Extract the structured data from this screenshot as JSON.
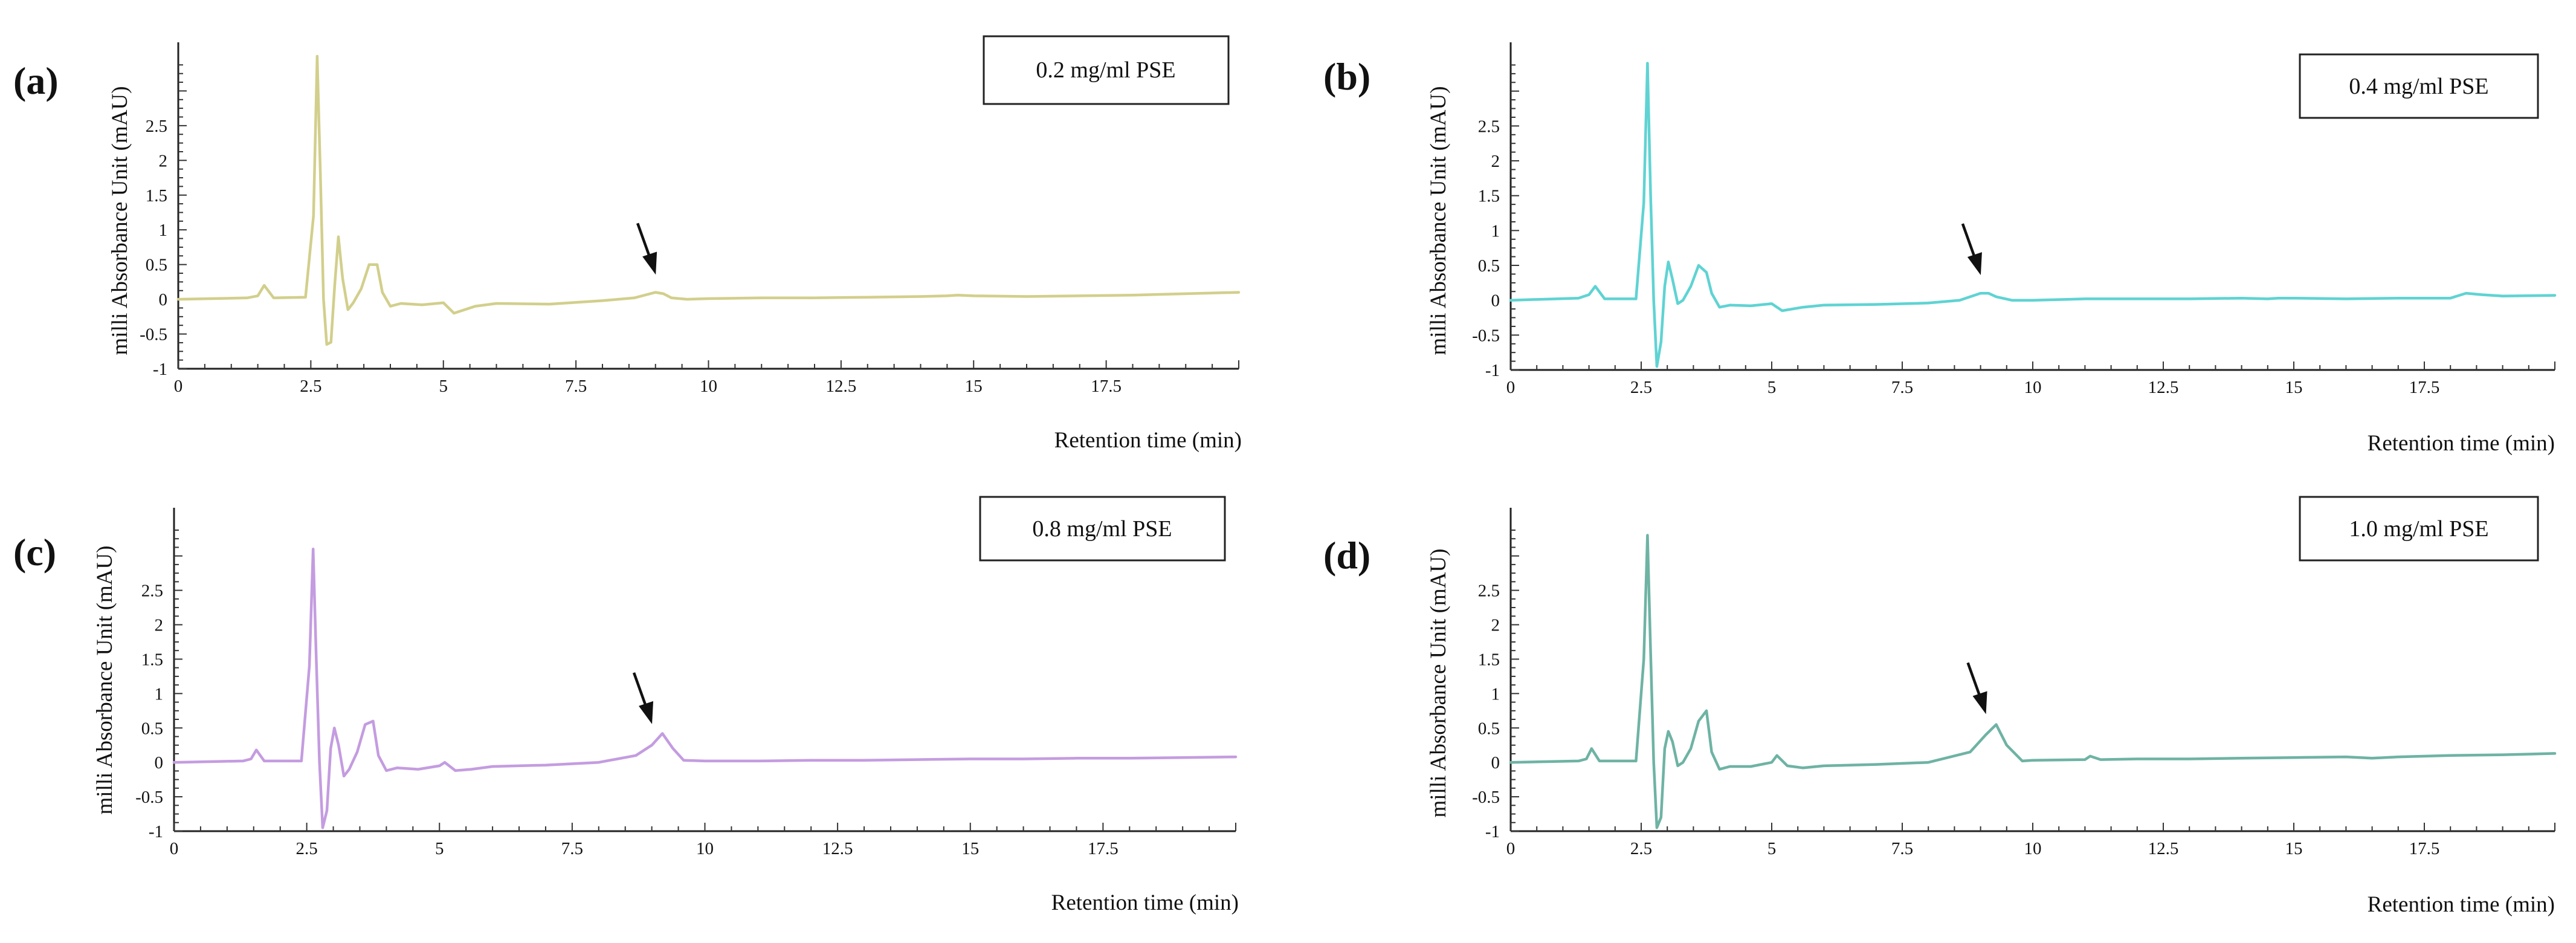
{
  "chart_data": [
    {
      "type": "line",
      "panel": "(a)",
      "legend": "0.2 mg/ml PSE",
      "color": "#d2cf8c",
      "xlabel": "Retention time (min)",
      "ylabel": "milli Absorbance Unit (mAU)",
      "xlim": [
        0,
        20
      ],
      "ylim": [
        -1,
        3.5
      ],
      "xticks": [
        "0",
        "2.5",
        "5",
        "7.5",
        "10",
        "12.5",
        "15",
        "17.5"
      ],
      "yticks": [
        "-1",
        "-0.5",
        "0",
        "0.5",
        "1",
        "1.5",
        "2",
        "2.5"
      ],
      "arrow_at": 9.05,
      "series": [
        {
          "name": "0.2 mg/ml PSE",
          "x": [
            0,
            1.3,
            1.5,
            1.62,
            1.8,
            2.4,
            2.55,
            2.62,
            2.68,
            2.74,
            2.8,
            2.88,
            2.95,
            3.02,
            3.1,
            3.2,
            3.3,
            3.45,
            3.6,
            3.75,
            3.85,
            4.0,
            4.2,
            4.6,
            5.0,
            5.2,
            5.6,
            6.0,
            7.0,
            8.0,
            8.6,
            9.0,
            9.15,
            9.3,
            9.6,
            10.0,
            11.0,
            12.0,
            13.0,
            14.0,
            14.5,
            14.7,
            15.0,
            16.0,
            17.0,
            18.0,
            19.0,
            20.0
          ],
          "y": [
            0,
            0.02,
            0.05,
            0.2,
            0.02,
            0.03,
            1.2,
            3.5,
            1.8,
            0,
            -0.65,
            -0.62,
            0.2,
            0.9,
            0.3,
            -0.15,
            -0.05,
            0.15,
            0.5,
            0.5,
            0.1,
            -0.1,
            -0.06,
            -0.08,
            -0.05,
            -0.2,
            -0.1,
            -0.06,
            -0.07,
            -0.02,
            0.02,
            0.1,
            0.08,
            0.02,
            0,
            0.01,
            0.02,
            0.02,
            0.03,
            0.04,
            0.05,
            0.06,
            0.05,
            0.04,
            0.05,
            0.06,
            0.08,
            0.1
          ]
        }
      ]
    },
    {
      "type": "line",
      "panel": "(b)",
      "legend": "0.4 mg/ml PSE",
      "color": "#5fd3d3",
      "xlabel": "Retention time (min)",
      "ylabel": "milli Absorbance Unit (mAU)",
      "xlim": [
        0,
        20
      ],
      "ylim": [
        -1,
        3.5
      ],
      "xticks": [
        "0",
        "2.5",
        "5",
        "7.5",
        "10",
        "12.5",
        "15",
        "17.5"
      ],
      "yticks": [
        "-1",
        "-0.5",
        "0",
        "0.5",
        "1",
        "1.5",
        "2",
        "2.5"
      ],
      "arrow_at": 9.05,
      "series": [
        {
          "name": "0.4 mg/ml PSE",
          "x": [
            0,
            1.3,
            1.5,
            1.62,
            1.8,
            2.4,
            2.55,
            2.62,
            2.68,
            2.74,
            2.8,
            2.88,
            2.95,
            3.02,
            3.1,
            3.2,
            3.3,
            3.45,
            3.6,
            3.75,
            3.85,
            4.0,
            4.2,
            4.6,
            5.0,
            5.2,
            5.6,
            6.0,
            7.0,
            8.0,
            8.6,
            9.0,
            9.15,
            9.3,
            9.6,
            10.0,
            11.0,
            12.0,
            13.0,
            14.0,
            14.5,
            14.7,
            15.0,
            16.0,
            17.0,
            18.0,
            18.3,
            18.6,
            19.0,
            20.0
          ],
          "y": [
            0,
            0.03,
            0.08,
            0.2,
            0.02,
            0.02,
            1.4,
            3.4,
            1.5,
            0,
            -0.95,
            -0.6,
            0.2,
            0.55,
            0.3,
            -0.05,
            0.0,
            0.2,
            0.5,
            0.4,
            0.1,
            -0.1,
            -0.07,
            -0.08,
            -0.05,
            -0.15,
            -0.1,
            -0.07,
            -0.06,
            -0.04,
            0.0,
            0.1,
            0.1,
            0.05,
            0.0,
            0.0,
            0.02,
            0.02,
            0.02,
            0.03,
            0.02,
            0.03,
            0.03,
            0.02,
            0.03,
            0.03,
            0.1,
            0.08,
            0.06,
            0.07
          ]
        }
      ]
    },
    {
      "type": "line",
      "panel": "(c)",
      "legend": "0.8 mg/ml PSE",
      "color": "#c49ce0",
      "xlabel": "Retention time (min)",
      "ylabel": "milli Absorbance Unit (mAU)",
      "xlim": [
        0,
        20
      ],
      "ylim": [
        -1,
        3.5
      ],
      "xticks": [
        "0",
        "2.5",
        "5",
        "7.5",
        "10",
        "12.5",
        "15",
        "17.5"
      ],
      "yticks": [
        "-1",
        "-0.5",
        "0",
        "0.5",
        "1",
        "1.5",
        "2",
        "2.5"
      ],
      "arrow_at": 9.05,
      "series": [
        {
          "name": "0.8 mg/ml PSE",
          "x": [
            0,
            1.3,
            1.45,
            1.55,
            1.7,
            2.4,
            2.55,
            2.62,
            2.68,
            2.74,
            2.8,
            2.88,
            2.95,
            3.02,
            3.1,
            3.2,
            3.3,
            3.45,
            3.6,
            3.75,
            3.85,
            4.0,
            4.2,
            4.6,
            5.0,
            5.1,
            5.3,
            5.6,
            6.0,
            7.0,
            8.0,
            8.7,
            9.0,
            9.2,
            9.4,
            9.6,
            10.0,
            11.0,
            12.0,
            13.0,
            14.0,
            15.0,
            16.0,
            17.0,
            18.0,
            19.0,
            20.0
          ],
          "y": [
            0,
            0.02,
            0.05,
            0.18,
            0.02,
            0.02,
            1.4,
            3.1,
            1.5,
            0,
            -0.95,
            -0.7,
            0.2,
            0.5,
            0.25,
            -0.2,
            -0.1,
            0.15,
            0.55,
            0.6,
            0.1,
            -0.12,
            -0.08,
            -0.1,
            -0.05,
            0.0,
            -0.12,
            -0.1,
            -0.06,
            -0.04,
            0.0,
            0.1,
            0.25,
            0.42,
            0.2,
            0.03,
            0.02,
            0.02,
            0.03,
            0.03,
            0.04,
            0.05,
            0.05,
            0.06,
            0.06,
            0.07,
            0.08
          ]
        }
      ]
    },
    {
      "type": "line",
      "panel": "(d)",
      "legend": "1.0 mg/ml PSE",
      "color": "#6eb3a4",
      "xlabel": "Retention time (min)",
      "ylabel": "milli Absorbance Unit (mAU)",
      "xlim": [
        0,
        20
      ],
      "ylim": [
        -1,
        3.5
      ],
      "xticks": [
        "0",
        "2.5",
        "5",
        "7.5",
        "10",
        "12.5",
        "15",
        "17.5"
      ],
      "yticks": [
        "-1",
        "-0.5",
        "0",
        "0.5",
        "1",
        "1.5",
        "2",
        "2.5"
      ],
      "arrow_at": 9.15,
      "series": [
        {
          "name": "1.0 mg/ml PSE",
          "x": [
            0,
            1.3,
            1.45,
            1.55,
            1.7,
            2.4,
            2.55,
            2.62,
            2.68,
            2.74,
            2.8,
            2.88,
            2.95,
            3.02,
            3.1,
            3.2,
            3.3,
            3.45,
            3.6,
            3.75,
            3.85,
            4.0,
            4.2,
            4.6,
            5.0,
            5.1,
            5.3,
            5.6,
            6.0,
            7.0,
            8.0,
            8.8,
            9.1,
            9.3,
            9.5,
            9.8,
            10.0,
            11.0,
            11.1,
            11.3,
            12.0,
            13.0,
            14.0,
            15.0,
            16.0,
            16.5,
            17.0,
            18.0,
            19.0,
            20.0
          ],
          "y": [
            0,
            0.02,
            0.05,
            0.2,
            0.02,
            0.02,
            1.5,
            3.3,
            1.6,
            0,
            -0.95,
            -0.8,
            0.2,
            0.45,
            0.3,
            -0.05,
            0.0,
            0.2,
            0.6,
            0.75,
            0.15,
            -0.1,
            -0.06,
            -0.06,
            0.0,
            0.1,
            -0.05,
            -0.08,
            -0.05,
            -0.03,
            0.0,
            0.15,
            0.4,
            0.55,
            0.25,
            0.02,
            0.03,
            0.04,
            0.09,
            0.04,
            0.05,
            0.05,
            0.06,
            0.07,
            0.08,
            0.06,
            0.08,
            0.1,
            0.11,
            0.13
          ]
        }
      ]
    }
  ]
}
